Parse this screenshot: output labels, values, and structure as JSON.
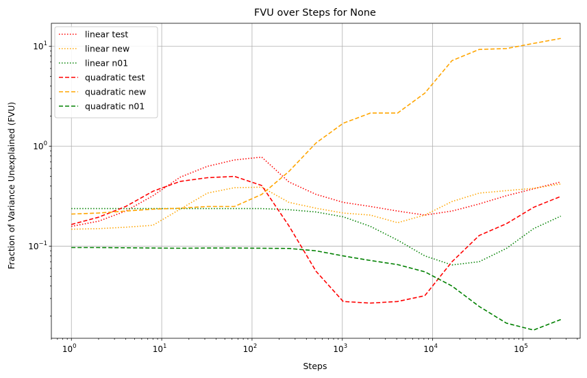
{
  "chart_data": {
    "type": "line",
    "title": "FVU over Steps for None",
    "xlabel": "Steps",
    "ylabel": "Fraction of Variance Unexplained (FVU)",
    "xscale": "log",
    "yscale": "log",
    "xlim": [
      0.6,
      430000
    ],
    "ylim": [
      0.012,
      17
    ],
    "grid": true,
    "legend_position": "top-left",
    "x_ticks": [
      {
        "value": 1,
        "base": "10",
        "exp": "0"
      },
      {
        "value": 10,
        "base": "10",
        "exp": "1"
      },
      {
        "value": 100,
        "base": "10",
        "exp": "2"
      },
      {
        "value": 1000,
        "base": "10",
        "exp": "3"
      },
      {
        "value": 10000,
        "base": "10",
        "exp": "4"
      },
      {
        "value": 100000,
        "base": "10",
        "exp": "5"
      }
    ],
    "y_ticks": [
      {
        "value": 0.1,
        "base": "10",
        "exp": "−1"
      },
      {
        "value": 1,
        "base": "10",
        "exp": "0"
      },
      {
        "value": 10,
        "base": "10",
        "exp": "1"
      }
    ],
    "x": [
      1,
      2,
      4,
      8,
      16,
      32,
      64,
      128,
      256,
      512,
      1024,
      2048,
      4096,
      8192,
      16384,
      32768,
      65536,
      131072,
      262144
    ],
    "series": [
      {
        "name": "linear test",
        "color": "#ff0000",
        "style": "dotted",
        "values": [
          0.158,
          0.178,
          0.225,
          0.32,
          0.49,
          0.63,
          0.73,
          0.78,
          0.44,
          0.33,
          0.275,
          0.25,
          0.225,
          0.205,
          0.225,
          0.265,
          0.32,
          0.375,
          0.44
        ]
      },
      {
        "name": "linear new",
        "color": "#ffa500",
        "style": "dotted",
        "values": [
          0.148,
          0.15,
          0.155,
          0.162,
          0.235,
          0.34,
          0.385,
          0.39,
          0.275,
          0.24,
          0.215,
          0.205,
          0.172,
          0.205,
          0.28,
          0.34,
          0.36,
          0.38,
          0.42
        ]
      },
      {
        "name": "linear n01",
        "color": "#008000",
        "style": "dotted",
        "values": [
          0.238,
          0.238,
          0.238,
          0.238,
          0.238,
          0.238,
          0.238,
          0.238,
          0.232,
          0.22,
          0.197,
          0.158,
          0.115,
          0.08,
          0.065,
          0.07,
          0.095,
          0.15,
          0.2
        ]
      },
      {
        "name": "quadratic test",
        "color": "#ff0000",
        "style": "dashed",
        "values": [
          0.165,
          0.195,
          0.25,
          0.355,
          0.445,
          0.485,
          0.5,
          0.405,
          0.16,
          0.056,
          0.028,
          0.027,
          0.028,
          0.032,
          0.07,
          0.128,
          0.168,
          0.245,
          0.315
        ]
      },
      {
        "name": "quadratic new",
        "color": "#ffa500",
        "style": "dashed",
        "values": [
          0.21,
          0.215,
          0.225,
          0.235,
          0.24,
          0.25,
          0.25,
          0.33,
          0.56,
          1.08,
          1.7,
          2.15,
          2.15,
          3.4,
          7.2,
          9.3,
          9.5,
          10.7,
          12.0
        ]
      },
      {
        "name": "quadratic n01",
        "color": "#008000",
        "style": "dashed",
        "values": [
          0.097,
          0.097,
          0.0965,
          0.096,
          0.0955,
          0.096,
          0.096,
          0.0955,
          0.095,
          0.09,
          0.08,
          0.072,
          0.0655,
          0.0555,
          0.04,
          0.025,
          0.017,
          0.0145,
          0.0185
        ]
      }
    ]
  }
}
